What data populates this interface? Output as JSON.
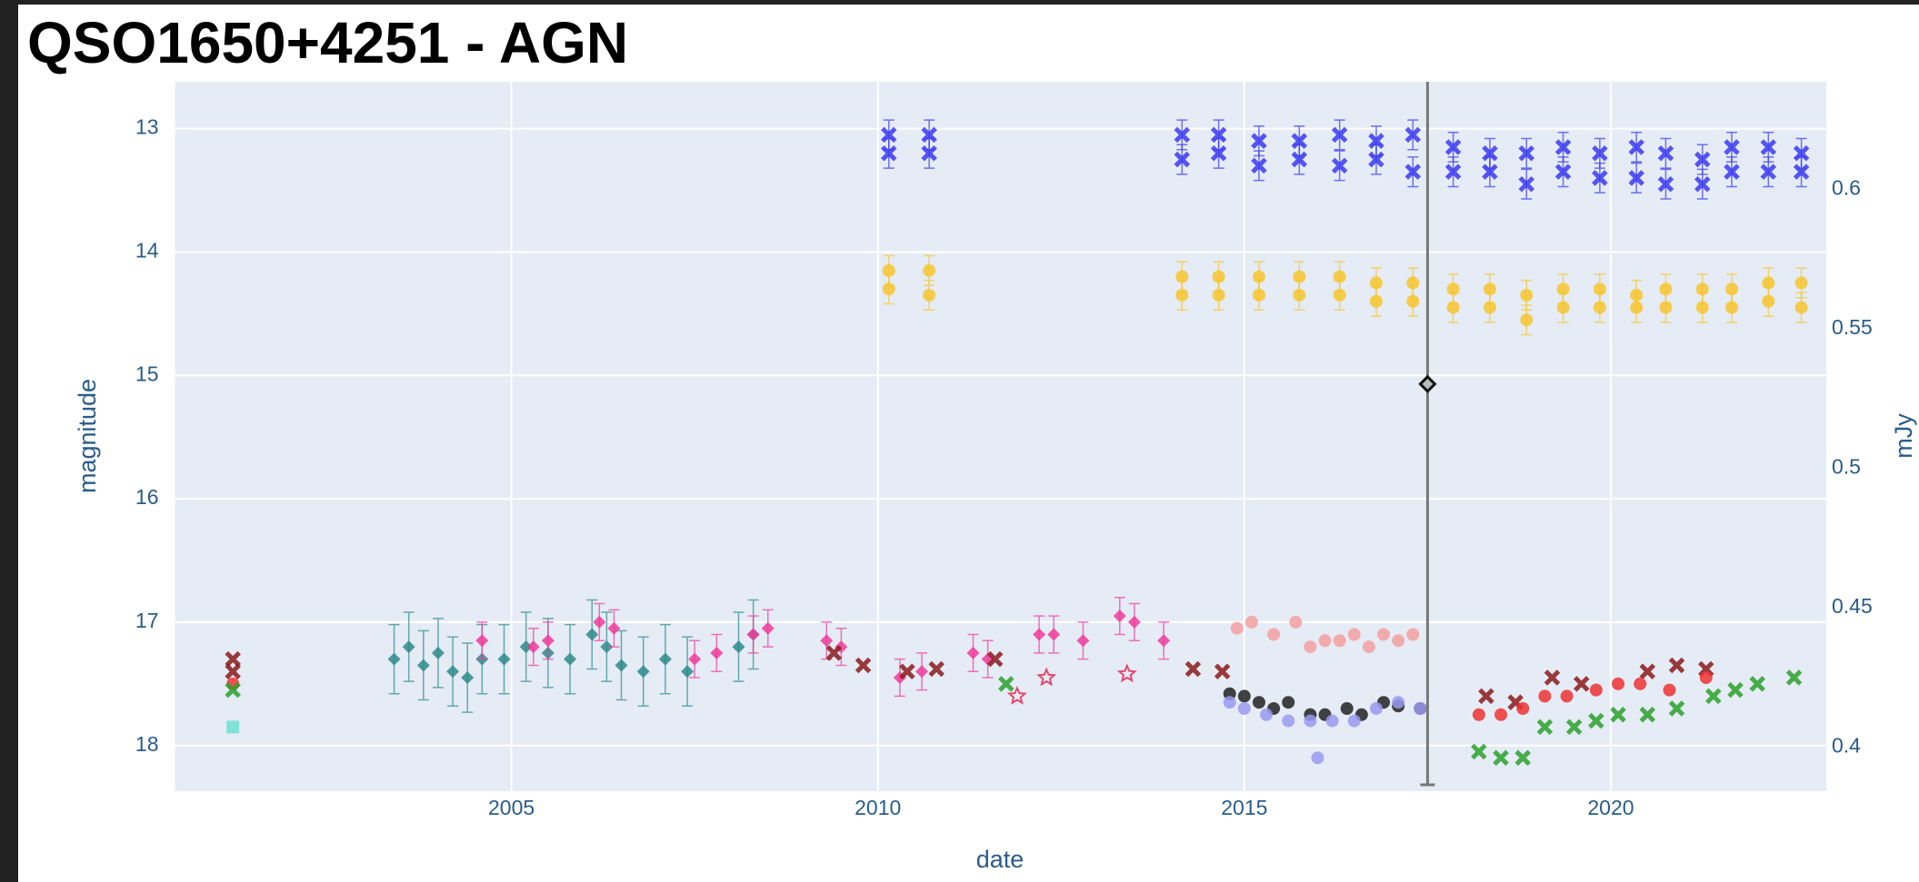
{
  "chart_data": {
    "type": "scatter",
    "title": "QSO1650+4251 - AGN",
    "x_label": "date",
    "y_label": "magnitude",
    "y2_label": "mJy",
    "xlim": [
      2000.41,
      2022.94
    ],
    "xticks": [
      2005,
      2010,
      2015,
      2020
    ],
    "ylim": [
      12.62,
      18.37
    ],
    "y_reversed": true,
    "yticks": [
      13,
      14,
      15,
      16,
      17,
      18
    ],
    "y2lim": [
      0.3842,
      0.6386
    ],
    "y2ticks": [
      0.4,
      0.45,
      0.5,
      0.55,
      0.6
    ],
    "grid": true,
    "cursor": {
      "x": 2017.5,
      "y": 15.07
    },
    "series": [
      {
        "color": "#3b3bf0",
        "marker": "x",
        "error": 0.12,
        "x": [
          2010.15,
          2010.15,
          2010.7,
          2010.7,
          2014.15,
          2014.15,
          2014.65,
          2014.65,
          2015.2,
          2015.2,
          2015.75,
          2015.75,
          2016.3,
          2016.3,
          2016.8,
          2016.8,
          2017.3,
          2017.3,
          2017.85,
          2017.85,
          2018.35,
          2018.35,
          2018.85,
          2018.85,
          2019.35,
          2019.35,
          2019.85,
          2019.85,
          2020.35,
          2020.35,
          2020.75,
          2020.75,
          2021.25,
          2021.25,
          2021.65,
          2021.65,
          2022.15,
          2022.15,
          2022.6,
          2022.6
        ],
        "values": [
          13.05,
          13.2,
          13.05,
          13.2,
          13.05,
          13.25,
          13.05,
          13.2,
          13.1,
          13.3,
          13.1,
          13.25,
          13.05,
          13.3,
          13.1,
          13.25,
          13.05,
          13.35,
          13.15,
          13.35,
          13.2,
          13.35,
          13.2,
          13.45,
          13.15,
          13.35,
          13.2,
          13.4,
          13.15,
          13.4,
          13.2,
          13.45,
          13.25,
          13.45,
          13.15,
          13.35,
          13.15,
          13.35,
          13.2,
          13.35
        ]
      },
      {
        "color": "#f7c62f",
        "marker": "circle",
        "error": 0.12,
        "x": [
          2010.15,
          2010.15,
          2010.7,
          2010.7,
          2014.15,
          2014.15,
          2014.65,
          2014.65,
          2015.2,
          2015.2,
          2015.75,
          2015.75,
          2016.3,
          2016.3,
          2016.8,
          2016.8,
          2017.3,
          2017.3,
          2017.85,
          2017.85,
          2018.35,
          2018.35,
          2018.85,
          2018.85,
          2019.35,
          2019.35,
          2019.85,
          2019.85,
          2020.35,
          2020.35,
          2020.75,
          2020.75,
          2021.25,
          2021.25,
          2021.65,
          2021.65,
          2022.15,
          2022.15,
          2022.6,
          2022.6
        ],
        "values": [
          14.15,
          14.3,
          14.15,
          14.35,
          14.2,
          14.35,
          14.2,
          14.35,
          14.2,
          14.35,
          14.2,
          14.35,
          14.2,
          14.35,
          14.25,
          14.4,
          14.25,
          14.4,
          14.3,
          14.45,
          14.3,
          14.45,
          14.35,
          14.55,
          14.3,
          14.45,
          14.3,
          14.45,
          14.35,
          14.45,
          14.3,
          14.45,
          14.3,
          14.45,
          14.3,
          14.45,
          14.25,
          14.4,
          14.25,
          14.45
        ]
      },
      {
        "color": "#2e8b8b",
        "marker": "diamond",
        "error": 0.28,
        "x": [
          2003.4,
          2003.6,
          2003.8,
          2004.0,
          2004.2,
          2004.4,
          2004.6,
          2004.9,
          2005.2,
          2005.5,
          2005.8,
          2006.1,
          2006.3,
          2006.5,
          2006.8,
          2007.1,
          2007.4,
          2008.1,
          2008.3
        ],
        "values": [
          17.3,
          17.2,
          17.35,
          17.25,
          17.4,
          17.45,
          17.3,
          17.3,
          17.2,
          17.25,
          17.3,
          17.1,
          17.2,
          17.35,
          17.4,
          17.3,
          17.4,
          17.2,
          17.1
        ]
      },
      {
        "color": "#f03c9a",
        "marker": "diamond",
        "error": 0.15,
        "x": [
          2004.6,
          2005.3,
          2005.5,
          2006.2,
          2006.4,
          2007.5,
          2007.8,
          2008.3,
          2008.5,
          2009.3,
          2009.5,
          2010.3,
          2010.6,
          2011.3,
          2011.5,
          2012.2,
          2012.4,
          2012.8,
          2013.3,
          2013.5,
          2013.9
        ],
        "values": [
          17.15,
          17.2,
          17.15,
          17.0,
          17.05,
          17.3,
          17.25,
          17.1,
          17.05,
          17.15,
          17.2,
          17.45,
          17.4,
          17.25,
          17.3,
          17.1,
          17.1,
          17.15,
          16.95,
          17.0,
          17.15
        ]
      },
      {
        "color": "#8b1a1a",
        "marker": "x",
        "x": [
          2001.2,
          2001.2,
          2009.4,
          2009.8,
          2010.4,
          2010.8,
          2011.6,
          2014.3,
          2014.7,
          2018.3,
          2018.7,
          2019.2,
          2019.6,
          2020.5,
          2020.9,
          2021.3
        ],
        "values": [
          17.3,
          17.4,
          17.25,
          17.35,
          17.4,
          17.38,
          17.3,
          17.38,
          17.4,
          17.6,
          17.65,
          17.45,
          17.5,
          17.4,
          17.35,
          17.38
        ]
      },
      {
        "color": "#ee3333",
        "marker": "circle",
        "x": [
          2001.2,
          2018.2,
          2018.5,
          2018.8,
          2019.1,
          2019.4,
          2019.8,
          2020.1,
          2020.4,
          2020.8,
          2021.3
        ],
        "values": [
          17.5,
          17.75,
          17.75,
          17.7,
          17.6,
          17.6,
          17.55,
          17.5,
          17.5,
          17.55,
          17.45
        ]
      },
      {
        "color": "#2ca02c",
        "marker": "x",
        "x": [
          2001.2,
          2011.75,
          2018.2,
          2018.5,
          2018.8,
          2019.1,
          2019.5,
          2019.8,
          2020.1,
          2020.5,
          2020.9,
          2021.4,
          2021.7,
          2022.0,
          2022.5
        ],
        "values": [
          17.55,
          17.5,
          18.05,
          18.1,
          18.1,
          17.85,
          17.85,
          17.8,
          17.75,
          17.75,
          17.7,
          17.6,
          17.55,
          17.5,
          17.45
        ]
      },
      {
        "color": "#6fe0d0",
        "marker": "square",
        "x": [
          2001.2
        ],
        "values": [
          17.85
        ]
      },
      {
        "color": "#f4a0a0",
        "marker": "circle",
        "x": [
          2014.9,
          2015.1,
          2015.4,
          2015.7,
          2015.9,
          2016.1,
          2016.3,
          2016.5,
          2016.7,
          2016.9,
          2017.1,
          2017.3
        ],
        "values": [
          17.05,
          17.0,
          17.1,
          17.0,
          17.2,
          17.15,
          17.15,
          17.1,
          17.2,
          17.1,
          17.15,
          17.1
        ]
      },
      {
        "color": "#222222",
        "marker": "circle",
        "x": [
          2014.8,
          2015.0,
          2015.2,
          2015.4,
          2015.6,
          2015.9,
          2016.1,
          2016.4,
          2016.6,
          2016.9,
          2017.1,
          2017.4
        ],
        "values": [
          17.58,
          17.6,
          17.65,
          17.7,
          17.65,
          17.75,
          17.75,
          17.7,
          17.75,
          17.65,
          17.68,
          17.7
        ]
      },
      {
        "color": "#9a9af0",
        "marker": "circle",
        "x": [
          2014.8,
          2015.0,
          2015.3,
          2015.6,
          2015.9,
          2016.0,
          2016.2,
          2016.5,
          2016.8,
          2017.1,
          2017.4
        ],
        "values": [
          17.65,
          17.7,
          17.75,
          17.8,
          17.8,
          18.1,
          17.8,
          17.8,
          17.7,
          17.65,
          17.7
        ]
      },
      {
        "color": "#e34a6f",
        "marker": "star",
        "x": [
          2011.9,
          2012.3,
          2013.4
        ],
        "values": [
          17.6,
          17.45,
          17.42
        ]
      }
    ]
  }
}
